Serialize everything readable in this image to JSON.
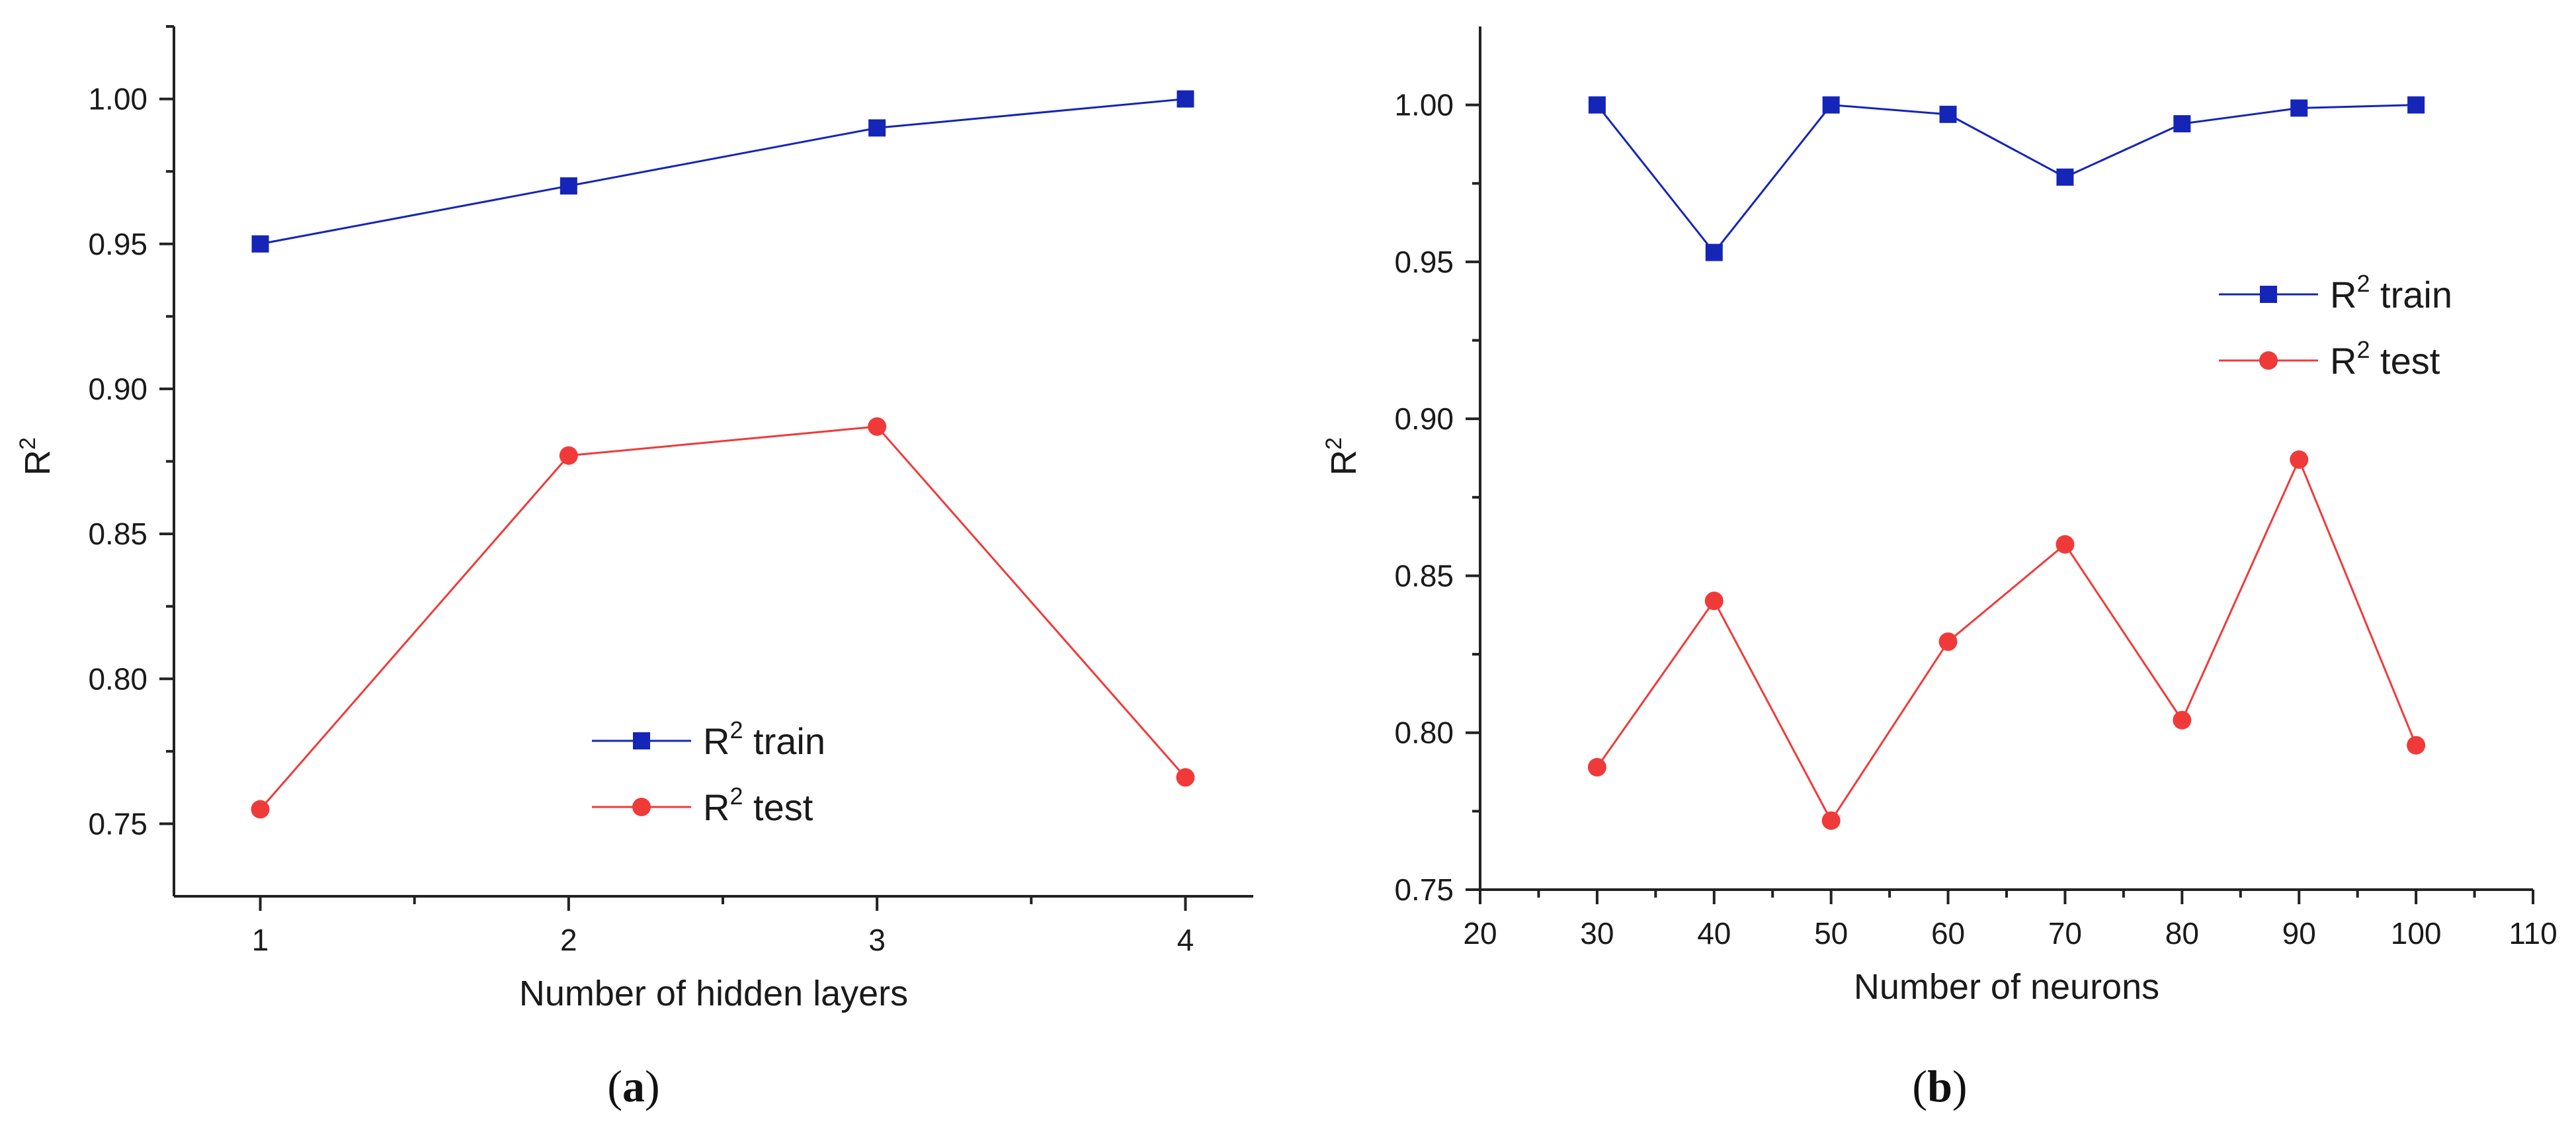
{
  "chart_data": [
    {
      "type": "line",
      "caption_open": "(",
      "caption_letter": "a",
      "caption_close": ")",
      "xlabel": "Number of hidden layers",
      "ylabel": "R",
      "ylabel_sup": "2",
      "xlim": [
        0.72,
        4.22
      ],
      "ylim": [
        0.725,
        1.025
      ],
      "xticks": [
        1,
        2,
        3,
        4
      ],
      "xtick_labels": [
        "1",
        "2",
        "3",
        "4"
      ],
      "xminor": [
        1.5,
        2.5,
        3.5
      ],
      "yticks": [
        0.75,
        0.8,
        0.85,
        0.9,
        0.95,
        1.0
      ],
      "ytick_labels": [
        "0.75",
        "0.80",
        "0.85",
        "0.90",
        "0.95",
        "1.00"
      ],
      "yminor": [
        0.775,
        0.825,
        0.875,
        0.925,
        0.975,
        1.025
      ],
      "legend_position": "center-right",
      "x": [
        1,
        2,
        3,
        4
      ],
      "series": [
        {
          "name": "R² train",
          "label_main": "R",
          "label_sup": "2",
          "label_rest": " train",
          "color": "#1525b8",
          "marker": "square",
          "values": [
            0.95,
            0.97,
            0.99,
            1.0
          ]
        },
        {
          "name": "R² test",
          "label_main": "R",
          "label_sup": "2",
          "label_rest": " test",
          "color": "#f03a3a",
          "marker": "circle",
          "values": [
            0.755,
            0.877,
            0.887,
            0.766
          ]
        }
      ]
    },
    {
      "type": "line",
      "caption_open": "(",
      "caption_letter": "b",
      "caption_close": ")",
      "xlabel": "Number of neurons",
      "ylabel": "R",
      "ylabel_sup": "2",
      "xlim": [
        20,
        110
      ],
      "ylim": [
        0.75,
        1.025
      ],
      "xticks": [
        20,
        30,
        40,
        50,
        60,
        70,
        80,
        90,
        100,
        110
      ],
      "xtick_labels": [
        "20",
        "30",
        "40",
        "50",
        "60",
        "70",
        "80",
        "90",
        "100",
        "110"
      ],
      "xminor": [
        25,
        35,
        45,
        55,
        65,
        75,
        85,
        95,
        105
      ],
      "yticks": [
        0.75,
        0.8,
        0.85,
        0.9,
        0.95,
        1.0
      ],
      "ytick_labels": [
        "0.75",
        "0.80",
        "0.85",
        "0.90",
        "0.95",
        "1.00"
      ],
      "yminor": [
        0.775,
        0.825,
        0.875,
        0.925,
        0.975
      ],
      "legend_position": "upper-right",
      "x": [
        30,
        40,
        50,
        60,
        70,
        80,
        90,
        100
      ],
      "series": [
        {
          "name": "R² train",
          "label_main": "R",
          "label_sup": "2",
          "label_rest": " train",
          "color": "#1525b8",
          "marker": "square",
          "values": [
            1.0,
            0.953,
            1.0,
            0.997,
            0.977,
            0.994,
            0.999,
            1.0
          ]
        },
        {
          "name": "R² test",
          "label_main": "R",
          "label_sup": "2",
          "label_rest": " test",
          "color": "#f03a3a",
          "marker": "circle",
          "values": [
            0.789,
            0.842,
            0.772,
            0.829,
            0.86,
            0.804,
            0.887,
            0.796
          ]
        }
      ]
    }
  ]
}
